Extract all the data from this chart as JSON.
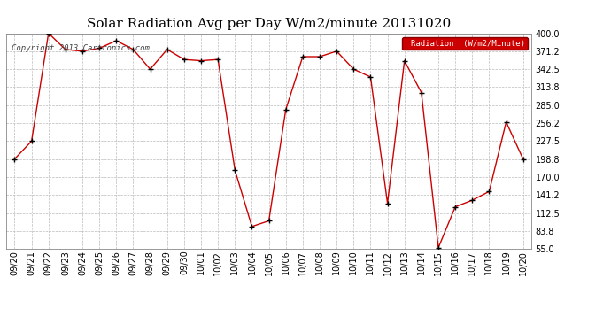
{
  "title": "Solar Radiation Avg per Day W/m2/minute 20131020",
  "copyright_text": "Copyright 2013 Cartronics.com",
  "legend_label": "Radiation  (W/m2/Minute)",
  "dates": [
    "09/20",
    "09/21",
    "09/22",
    "09/23",
    "09/24",
    "09/25",
    "09/26",
    "09/27",
    "09/28",
    "09/29",
    "09/30",
    "10/01",
    "10/02",
    "10/03",
    "10/04",
    "10/05",
    "10/06",
    "10/07",
    "10/08",
    "10/09",
    "10/10",
    "10/11",
    "10/12",
    "10/13",
    "10/14",
    "10/15",
    "10/16",
    "10/17",
    "10/18",
    "10/19",
    "10/20"
  ],
  "values": [
    198.8,
    227.5,
    400.0,
    374.0,
    371.2,
    376.0,
    388.0,
    374.0,
    342.5,
    374.0,
    358.0,
    356.0,
    358.0,
    181.0,
    91.0,
    100.0,
    278.0,
    362.5,
    362.5,
    371.2,
    342.5,
    330.0,
    128.0,
    356.0,
    305.0,
    57.0,
    122.5,
    133.0,
    147.0,
    258.0,
    198.8
  ],
  "line_color": "#cc0000",
  "marker_color": "#000000",
  "bg_color": "#ffffff",
  "grid_color": "#bbbbbb",
  "ylim_min": 55.0,
  "ylim_max": 400.0,
  "yticks": [
    55.0,
    83.8,
    112.5,
    141.2,
    170.0,
    198.8,
    227.5,
    256.2,
    285.0,
    313.8,
    342.5,
    371.2,
    400.0
  ],
  "legend_bg": "#cc0000",
  "legend_text_color": "#ffffff",
  "title_fontsize": 11,
  "copyright_fontsize": 6.5,
  "tick_fontsize": 7
}
